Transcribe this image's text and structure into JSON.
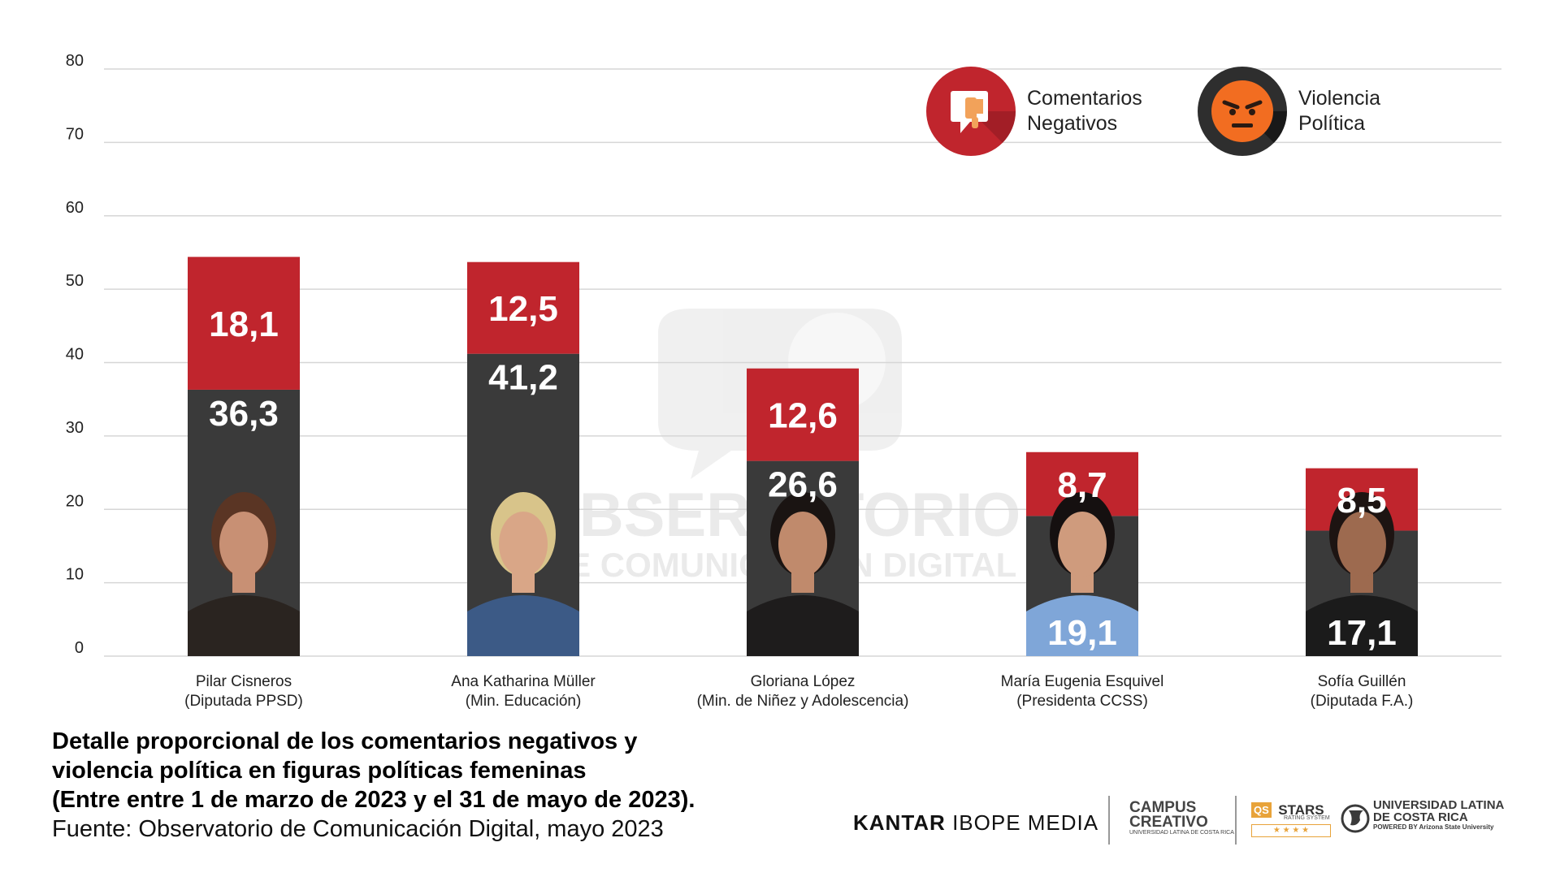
{
  "chart_data": {
    "type": "bar",
    "stacked": true,
    "categories": [
      "Pilar Cisneros (Diputada PPSD)",
      "Ana Katharina Müller (Min. Educación)",
      "Gloriana López (Min. de Niñez y Adolescencia)",
      "María Eugenia Esquivel (Presidenta CCSS)",
      "Sofía Guillén (Diputada F.A.)"
    ],
    "category_labels": [
      {
        "name": "Pilar Cisneros",
        "role": "(Diputada PPSD)"
      },
      {
        "name": "Ana Katharina Müller",
        "role": "(Min. Educación)"
      },
      {
        "name": "Gloriana López",
        "role": "(Min. de Niñez y Adolescencia)"
      },
      {
        "name": "María Eugenia Esquivel",
        "role": "(Presidenta CCSS)"
      },
      {
        "name": "Sofía Guillén",
        "role": "(Diputada F.A.)"
      }
    ],
    "series": [
      {
        "name": "Comentarios Negativos",
        "color": "#3a3a3a",
        "values": [
          36.3,
          41.2,
          26.6,
          19.1,
          17.1
        ],
        "labels": [
          "36,3",
          "41,2",
          "26,6",
          "19,1",
          "17,1"
        ]
      },
      {
        "name": "Violencia Política",
        "color": "#c0252d",
        "values": [
          18.1,
          12.5,
          12.6,
          8.7,
          8.5
        ],
        "labels": [
          "18,1",
          "12,5",
          "12,6",
          "8,7",
          "8,5"
        ]
      }
    ],
    "ylim": [
      0,
      80
    ],
    "yticks": [
      "0",
      "10",
      "20",
      "30",
      "40",
      "50",
      "60",
      "70",
      "80"
    ],
    "grid": true,
    "legend_position": "top-right",
    "xlabel": "",
    "ylabel": ""
  },
  "legend": {
    "negative_line1": "Comentarios",
    "negative_line2": "Negativos",
    "violence_line1": "Violencia",
    "violence_line2": "Política",
    "negative_icon": "thumbs-down-comment-icon",
    "violence_icon": "angry-face-icon"
  },
  "watermark": {
    "line1": "OBSERVATORIO",
    "line2": "DE COMUNICACIÓN DIGITAL"
  },
  "caption": {
    "title_line1": "Detalle proporcional de los comentarios negativos y",
    "title_line2": "violencia política en figuras políticas femeninas",
    "title_line3": "(Entre entre 1 de marzo de 2023 y el 31 de mayo de 2023).",
    "source": "Fuente: Observatorio de Comunicación Digital, mayo 2023"
  },
  "logos": {
    "kantar_bold": "KANTAR",
    "kantar_rest": "IBOPE MEDIA",
    "campus_line1": "CAMPUS",
    "campus_line2": "CREATIVO",
    "campus_sub": "UNIVERSIDAD LATINA DE COSTA RICA",
    "qs": "QS",
    "stars": "STARS",
    "stars_sub": "RATING SYSTEM",
    "stars_row": "★ ★ ★ ★",
    "ulatina_line1": "UNIVERSIDAD LATINA",
    "ulatina_line2": "DE COSTA RICA",
    "ulatina_sub": "POWERED BY Arizona State University"
  },
  "colors": {
    "dark_bar": "#3a3a3a",
    "red_bar": "#c0252d",
    "grid": "#d6d6d6",
    "legend_orange": "#f26d21"
  }
}
